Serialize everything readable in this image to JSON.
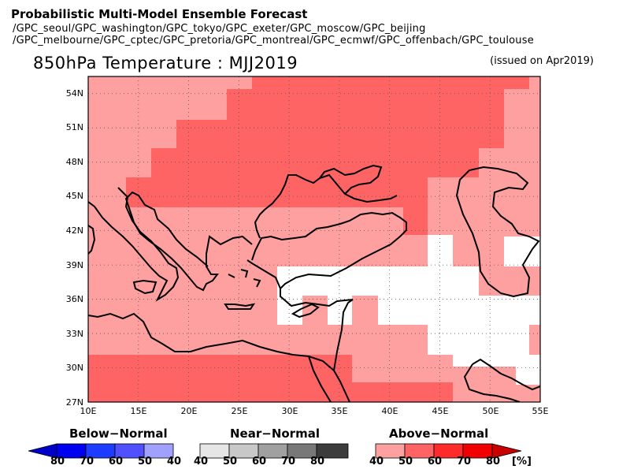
{
  "header": {
    "title": "Probabilistic Multi-Model Ensemble Forecast",
    "line1": "/GPC_seoul/GPC_washington/GPC_tokyo/GPC_exeter/GPC_moscow/GPC_beijing",
    "line2": "/GPC_melbourne/GPC_cptec/GPC_pretoria/GPC_montreal/GPC_ecmwf/GPC_offenbach/GPC_toulouse"
  },
  "map": {
    "title": "850hPa Temperature : MJJ2019",
    "issued": "(issued on Apr2019)",
    "lon_labels": [
      "10E",
      "15E",
      "20E",
      "25E",
      "30E",
      "35E",
      "40E",
      "45E",
      "50E",
      "55E"
    ],
    "lat_labels": [
      "27N",
      "30N",
      "33N",
      "36N",
      "39N",
      "42N",
      "45N",
      "48N",
      "51N",
      "54N"
    ],
    "region": {
      "lon_min": 10,
      "lon_max": 55,
      "lat_min": 27,
      "lat_max": 55.5
    },
    "colors": {
      "above_40": "#ffa0a0",
      "above_50": "#ff6464",
      "near": "#ffffff"
    }
  },
  "legend": {
    "below": {
      "label": "Below−Normal",
      "ticks": [
        "80",
        "70",
        "60",
        "50",
        "40"
      ],
      "colors": [
        "#0000c8",
        "#0000f0",
        "#1e3cff",
        "#5050ff",
        "#a0a0ff"
      ]
    },
    "near": {
      "label": "Near−Normal",
      "ticks": [
        "40",
        "50",
        "60",
        "70",
        "80"
      ],
      "colors": [
        "#e6e6e6",
        "#c8c8c8",
        "#a0a0a0",
        "#787878",
        "#3c3c3c"
      ]
    },
    "above": {
      "label": "Above−Normal",
      "ticks": [
        "40",
        "50",
        "60",
        "70",
        "80"
      ],
      "unit": "[%]",
      "colors": [
        "#ffa0a0",
        "#ff6464",
        "#ff2a2a",
        "#f00000",
        "#c80000"
      ]
    }
  }
}
